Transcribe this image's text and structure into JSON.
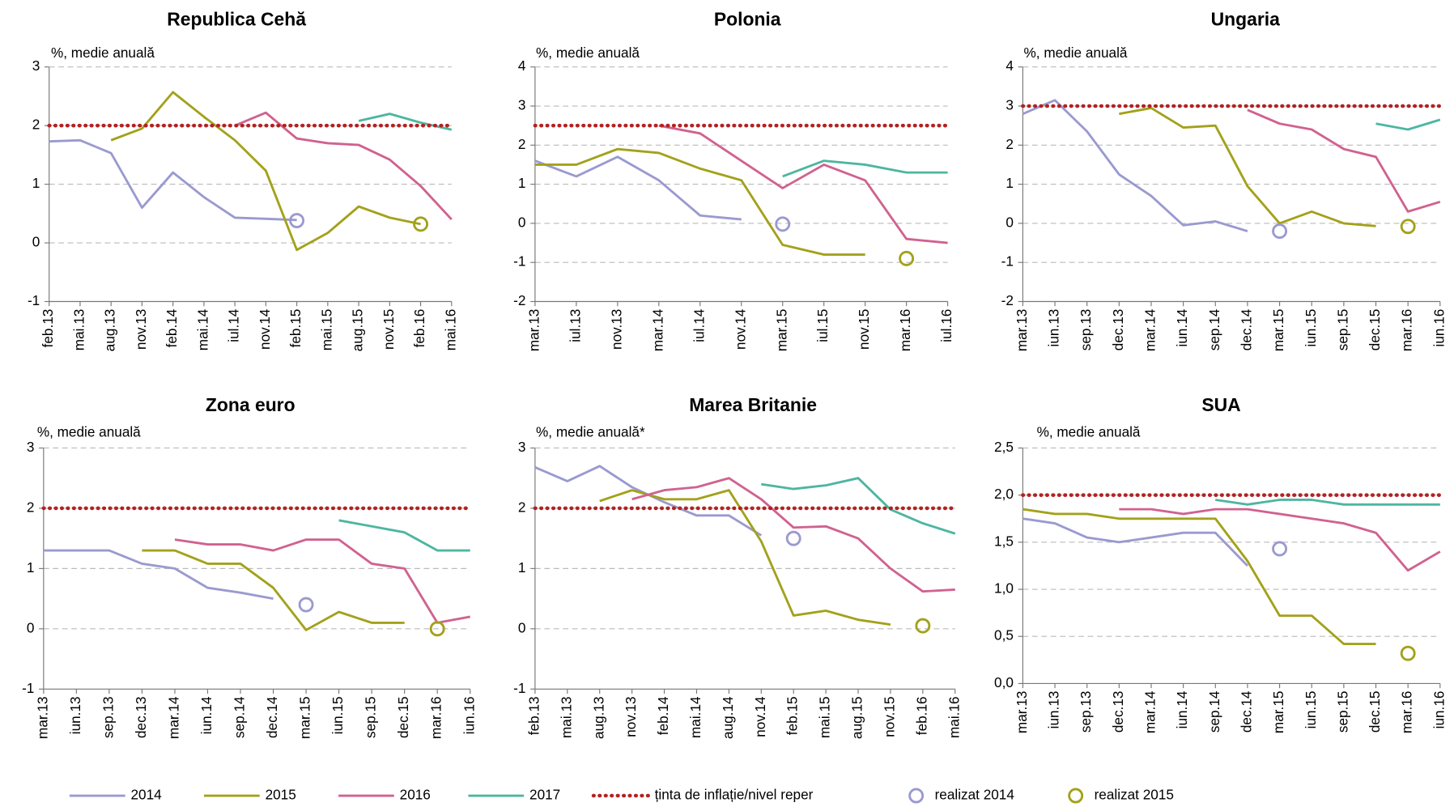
{
  "legend": {
    "position": "bottom",
    "entries": [
      {
        "name": "2014",
        "color": "#9a9ad0",
        "kind": "line"
      },
      {
        "name": "2015",
        "color": "#a3a11b",
        "kind": "line"
      },
      {
        "name": "2016",
        "color": "#d0628f",
        "kind": "line"
      },
      {
        "name": "2017",
        "color": "#4db6a0",
        "kind": "line"
      },
      {
        "name": "ținta de inflație/nivel reper",
        "color": "#b22222",
        "kind": "dotted"
      },
      {
        "name": "realizat 2014",
        "color": "#9a9ad0",
        "kind": "marker"
      },
      {
        "name": "realizat 2015",
        "color": "#a3a11b",
        "kind": "marker"
      }
    ]
  },
  "chart_data": [
    {
      "type": "line",
      "title": "Republica Cehă",
      "ylabel": "%, medie anuală",
      "grid": true,
      "categories": [
        "feb.13",
        "mai.13",
        "aug.13",
        "nov.13",
        "feb.14",
        "mai.14",
        "iul.14",
        "nov.14",
        "feb.15",
        "mai.15",
        "aug.15",
        "nov.15",
        "feb.16",
        "mai.16"
      ],
      "ylim": [
        -1,
        3
      ],
      "yticks": [
        -1,
        0,
        1,
        2,
        3
      ],
      "series": [
        {
          "values": [
            1.73,
            1.75,
            1.53,
            0.6,
            1.2,
            0.78,
            0.43,
            0.41,
            0.39,
            null,
            null,
            null,
            null,
            null
          ]
        },
        {
          "values": [
            null,
            null,
            1.75,
            1.95,
            2.57,
            2.15,
            1.75,
            1.23,
            -0.12,
            0.17,
            0.62,
            0.43,
            0.32,
            null
          ]
        },
        {
          "values": [
            null,
            null,
            null,
            null,
            null,
            null,
            2.0,
            2.22,
            1.78,
            1.7,
            1.67,
            1.42,
            0.97,
            0.4
          ]
        },
        {
          "values": [
            null,
            null,
            null,
            null,
            null,
            null,
            null,
            null,
            null,
            null,
            2.08,
            2.2,
            2.05,
            1.93
          ]
        },
        {
          "values": [
            2,
            2,
            2,
            2,
            2,
            2,
            2,
            2,
            2,
            2,
            2,
            2,
            2,
            2
          ]
        },
        {
          "values": [
            null,
            null,
            null,
            null,
            null,
            null,
            null,
            null,
            0.38,
            null,
            null,
            null,
            null,
            null
          ]
        },
        {
          "values": [
            null,
            null,
            null,
            null,
            null,
            null,
            null,
            null,
            null,
            null,
            null,
            null,
            0.32,
            null
          ]
        }
      ]
    },
    {
      "type": "line",
      "title": "Polonia",
      "ylabel": "%, medie anuală",
      "grid": true,
      "categories": [
        "mar.13",
        "iul.13",
        "nov.13",
        "mar.14",
        "iul.14",
        "nov.14",
        "mar.15",
        "iul.15",
        "nov.15",
        "mar.16",
        "iul.16"
      ],
      "ylim": [
        -2,
        4
      ],
      "yticks": [
        -2,
        -1,
        0,
        1,
        2,
        3,
        4
      ],
      "series": [
        {
          "values": [
            1.6,
            1.2,
            1.7,
            1.1,
            0.2,
            0.1,
            null,
            null,
            null,
            null,
            null
          ]
        },
        {
          "values": [
            1.5,
            1.5,
            1.9,
            1.8,
            1.4,
            1.1,
            -0.55,
            -0.8,
            -0.8,
            null,
            null
          ]
        },
        {
          "values": [
            null,
            null,
            null,
            2.5,
            2.3,
            1.6,
            0.9,
            1.5,
            1.1,
            -0.4,
            -0.5
          ]
        },
        {
          "values": [
            null,
            null,
            null,
            null,
            null,
            null,
            1.2,
            1.6,
            1.5,
            1.3,
            1.3
          ]
        },
        {
          "values": [
            2.5,
            2.5,
            2.5,
            2.5,
            2.5,
            2.5,
            2.5,
            2.5,
            2.5,
            2.5,
            2.5
          ]
        },
        {
          "values": [
            null,
            null,
            null,
            null,
            null,
            null,
            -0.02,
            null,
            null,
            null,
            null
          ]
        },
        {
          "values": [
            null,
            null,
            null,
            null,
            null,
            null,
            null,
            null,
            null,
            -0.9,
            null
          ]
        }
      ]
    },
    {
      "type": "line",
      "title": "Ungaria",
      "ylabel": "%, medie anuală",
      "grid": true,
      "categories": [
        "mar.13",
        "iun.13",
        "sep.13",
        "dec.13",
        "mar.14",
        "iun.14",
        "sep.14",
        "dec.14",
        "mar.15",
        "iun.15",
        "sep.15",
        "dec.15",
        "mar.16",
        "iun.16"
      ],
      "ylim": [
        -2,
        4
      ],
      "yticks": [
        -2,
        -1,
        0,
        1,
        2,
        3,
        4
      ],
      "series": [
        {
          "values": [
            2.8,
            3.15,
            2.35,
            1.25,
            0.7,
            -0.05,
            0.05,
            -0.2,
            null,
            null,
            null,
            null,
            null,
            null
          ]
        },
        {
          "values": [
            null,
            null,
            null,
            2.8,
            2.95,
            2.45,
            2.5,
            0.95,
            0.0,
            0.3,
            0.0,
            -0.07,
            null,
            null
          ]
        },
        {
          "values": [
            null,
            null,
            null,
            null,
            null,
            null,
            null,
            2.9,
            2.55,
            2.4,
            1.9,
            1.7,
            0.3,
            0.55
          ]
        },
        {
          "values": [
            null,
            null,
            null,
            null,
            null,
            null,
            null,
            null,
            null,
            null,
            null,
            2.55,
            2.4,
            2.65
          ]
        },
        {
          "values": [
            3,
            3,
            3,
            3,
            3,
            3,
            3,
            3,
            3,
            3,
            3,
            3,
            3,
            3
          ]
        },
        {
          "values": [
            null,
            null,
            null,
            null,
            null,
            null,
            null,
            null,
            -0.2,
            null,
            null,
            null,
            null,
            null
          ]
        },
        {
          "values": [
            null,
            null,
            null,
            null,
            null,
            null,
            null,
            null,
            null,
            null,
            null,
            null,
            -0.08,
            null
          ]
        }
      ]
    },
    {
      "type": "line",
      "title": "Zona euro",
      "ylabel": "%, medie anuală",
      "grid": true,
      "categories": [
        "mar.13",
        "iun.13",
        "sep.13",
        "dec.13",
        "mar.14",
        "iun.14",
        "sep.14",
        "dec.14",
        "mar.15",
        "iun.15",
        "sep.15",
        "dec.15",
        "mar.16",
        "iun.16"
      ],
      "ylim": [
        -1,
        3
      ],
      "yticks": [
        -1,
        0,
        1,
        2,
        3
      ],
      "series": [
        {
          "values": [
            1.3,
            1.3,
            1.3,
            1.08,
            1.0,
            0.68,
            0.6,
            0.5,
            null,
            null,
            null,
            null,
            null,
            null
          ]
        },
        {
          "values": [
            null,
            null,
            null,
            1.3,
            1.3,
            1.08,
            1.08,
            0.68,
            -0.02,
            0.28,
            0.1,
            0.1,
            null,
            null
          ]
        },
        {
          "values": [
            null,
            null,
            null,
            null,
            1.48,
            1.4,
            1.4,
            1.3,
            1.48,
            1.48,
            1.08,
            1.0,
            0.1,
            0.2
          ]
        },
        {
          "values": [
            null,
            null,
            null,
            null,
            null,
            null,
            null,
            null,
            null,
            1.8,
            1.7,
            1.6,
            1.3,
            1.3
          ]
        },
        {
          "values": [
            2,
            2,
            2,
            2,
            2,
            2,
            2,
            2,
            2,
            2,
            2,
            2,
            2,
            2
          ]
        },
        {
          "values": [
            null,
            null,
            null,
            null,
            null,
            null,
            null,
            null,
            0.4,
            null,
            null,
            null,
            null,
            null
          ]
        },
        {
          "values": [
            null,
            null,
            null,
            null,
            null,
            null,
            null,
            null,
            null,
            null,
            null,
            null,
            0.0,
            null
          ]
        }
      ]
    },
    {
      "type": "line",
      "title": "Marea Britanie",
      "ylabel": "%, medie anuală*",
      "grid": true,
      "categories": [
        "feb.13",
        "mai.13",
        "aug.13",
        "nov.13",
        "feb.14",
        "mai.14",
        "aug.14",
        "nov.14",
        "feb.15",
        "mai.15",
        "aug.15",
        "nov.15",
        "feb.16",
        "mai.16"
      ],
      "ylim": [
        -1,
        3
      ],
      "yticks": [
        -1,
        0,
        1,
        2,
        3
      ],
      "series": [
        {
          "values": [
            2.68,
            2.45,
            2.7,
            2.35,
            2.1,
            1.88,
            1.88,
            1.55,
            null,
            null,
            null,
            null,
            null,
            null
          ]
        },
        {
          "values": [
            null,
            null,
            2.12,
            2.3,
            2.15,
            2.15,
            2.3,
            1.45,
            0.22,
            0.3,
            0.15,
            0.07,
            null,
            null
          ]
        },
        {
          "values": [
            null,
            null,
            null,
            2.15,
            2.3,
            2.35,
            2.5,
            2.15,
            1.68,
            1.7,
            1.5,
            1.0,
            0.62,
            0.65
          ]
        },
        {
          "values": [
            null,
            null,
            null,
            null,
            null,
            null,
            null,
            2.4,
            2.32,
            2.38,
            2.5,
            1.98,
            1.75,
            1.58
          ]
        },
        {
          "values": [
            2,
            2,
            2,
            2,
            2,
            2,
            2,
            2,
            2,
            2,
            2,
            2,
            2,
            2
          ]
        },
        {
          "values": [
            null,
            null,
            null,
            null,
            null,
            null,
            null,
            null,
            1.5,
            null,
            null,
            null,
            null,
            null
          ]
        },
        {
          "values": [
            null,
            null,
            null,
            null,
            null,
            null,
            null,
            null,
            null,
            null,
            null,
            null,
            0.05,
            null
          ]
        }
      ]
    },
    {
      "type": "line",
      "title": "SUA",
      "ylabel": "%, medie anuală",
      "grid": true,
      "categories": [
        "mar.13",
        "iun.13",
        "sep.13",
        "dec.13",
        "mar.14",
        "iun.14",
        "sep.14",
        "dec.14",
        "mar.15",
        "iun.15",
        "sep.15",
        "dec.15",
        "mar.16",
        "iun.16"
      ],
      "ylim": [
        0,
        2.5
      ],
      "yticks": [
        {
          "value": 0,
          "label": "0,0"
        },
        {
          "value": 0.5,
          "label": "0,5"
        },
        {
          "value": 1,
          "label": "1,0"
        },
        {
          "value": 1.5,
          "label": "1,5"
        },
        {
          "value": 2,
          "label": "2,0"
        },
        {
          "value": 2.5,
          "label": "2,5"
        }
      ],
      "series": [
        {
          "values": [
            1.75,
            1.7,
            1.55,
            1.5,
            1.55,
            1.6,
            1.6,
            1.25,
            null,
            null,
            null,
            null,
            null,
            null
          ]
        },
        {
          "values": [
            1.85,
            1.8,
            1.8,
            1.75,
            1.75,
            1.75,
            1.75,
            1.3,
            0.72,
            0.72,
            0.42,
            0.42,
            null,
            null
          ]
        },
        {
          "values": [
            null,
            null,
            null,
            1.85,
            1.85,
            1.8,
            1.85,
            1.85,
            1.8,
            1.75,
            1.7,
            1.6,
            1.2,
            1.4
          ]
        },
        {
          "values": [
            null,
            null,
            null,
            null,
            null,
            null,
            1.95,
            1.9,
            1.95,
            1.95,
            1.9,
            1.9,
            1.9,
            1.9
          ]
        },
        {
          "values": [
            2,
            2,
            2,
            2,
            2,
            2,
            2,
            2,
            2,
            2,
            2,
            2,
            2,
            2
          ]
        },
        {
          "values": [
            null,
            null,
            null,
            null,
            null,
            null,
            null,
            null,
            1.43,
            null,
            null,
            null,
            null,
            null
          ]
        },
        {
          "values": [
            null,
            null,
            null,
            null,
            null,
            null,
            null,
            null,
            null,
            null,
            null,
            null,
            0.32,
            null
          ]
        }
      ]
    }
  ]
}
